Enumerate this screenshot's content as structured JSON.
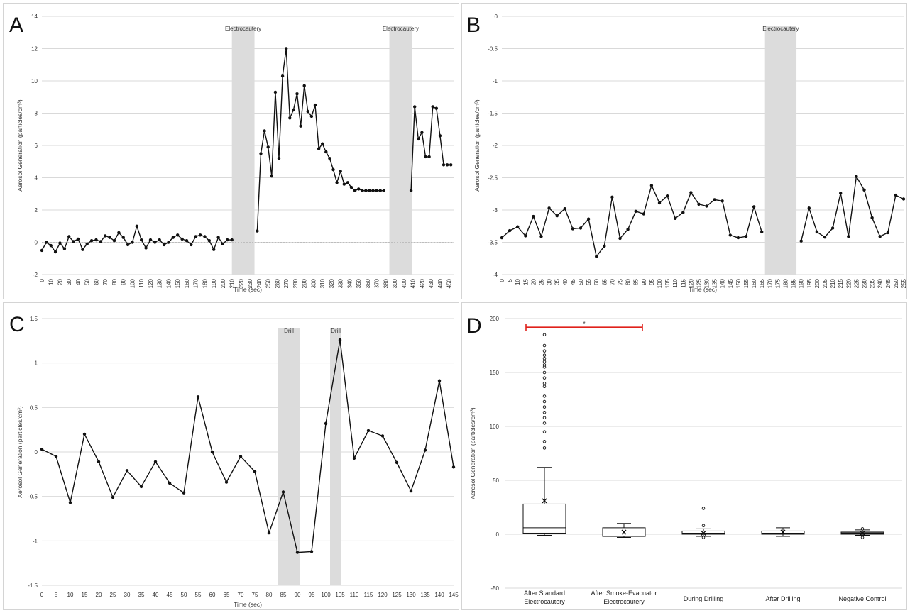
{
  "colors": {
    "line": "#111111",
    "band": "#dcdcdc",
    "grid": "#d9d9d9",
    "significance": "#e0211b",
    "box_fill_negative": "#7a7a7a"
  },
  "chart_data": [
    {
      "panel_label": "A",
      "type": "line",
      "ylabel": "Aerosol Generation (particles/cm³)",
      "xlabel": "Time (sec)",
      "ylim": [
        -2,
        14
      ],
      "yticks": [
        "-2",
        "0",
        "2",
        "4",
        "6",
        "8",
        "10",
        "12",
        "14"
      ],
      "xlim": [
        0,
        455
      ],
      "xtick_values": [
        0,
        10,
        20,
        30,
        40,
        50,
        60,
        70,
        80,
        90,
        100,
        110,
        120,
        130,
        140,
        150,
        160,
        170,
        180,
        190,
        200,
        210,
        220,
        230,
        240,
        250,
        260,
        270,
        280,
        290,
        300,
        310,
        320,
        330,
        340,
        350,
        360,
        370,
        380,
        390,
        400,
        410,
        420,
        430,
        440,
        450
      ],
      "xticks": [
        "0",
        "10",
        "20",
        "30",
        "40",
        "50",
        "60",
        "70",
        "80",
        "90",
        "100",
        "110",
        "120",
        "130",
        "140",
        "150",
        "160",
        "170",
        "180",
        "190",
        "200",
        "210",
        "220",
        "230",
        "240",
        "250",
        "260",
        "270",
        "280",
        "290",
        "300",
        "310",
        "320",
        "330",
        "340",
        "350",
        "360",
        "370",
        "380",
        "390",
        "400",
        "410",
        "420",
        "430",
        "440",
        "450"
      ],
      "zero_line": true,
      "grid": true,
      "bands": [
        {
          "label": "Electrocautery",
          "x_start": 210,
          "x_end": 235
        },
        {
          "label": "Electrocautery",
          "x_start": 384,
          "x_end": 409
        }
      ],
      "segments": [
        {
          "x": [
            0,
            5,
            10,
            15,
            20,
            25,
            30,
            35,
            40,
            45,
            50,
            55,
            60,
            65,
            70,
            75,
            80,
            85,
            90,
            95,
            100,
            105,
            110,
            115,
            120,
            125,
            130,
            135,
            140,
            145,
            150,
            155,
            160,
            165,
            170,
            175,
            180,
            185,
            190,
            195,
            200,
            205,
            210
          ],
          "y": [
            -0.5,
            0.0,
            -0.2,
            -0.6,
            -0.05,
            -0.4,
            0.35,
            0.05,
            0.2,
            -0.45,
            -0.1,
            0.1,
            0.15,
            0.05,
            0.4,
            0.3,
            0.1,
            0.6,
            0.3,
            -0.15,
            0.0,
            1.0,
            0.15,
            -0.35,
            0.15,
            0.0,
            0.15,
            -0.15,
            0.0,
            0.3,
            0.45,
            0.2,
            0.1,
            -0.15,
            0.35,
            0.45,
            0.35,
            0.1,
            -0.45,
            0.3,
            -0.1,
            0.15,
            0.15
          ]
        },
        {
          "x": [
            238,
            242,
            246,
            250,
            254,
            258,
            262,
            266,
            270,
            274,
            278,
            282,
            286,
            290,
            294,
            298,
            302,
            306,
            310,
            314,
            318,
            322,
            326,
            330,
            334,
            338,
            342,
            346,
            350,
            354,
            358,
            362,
            366,
            370,
            374,
            378
          ],
          "y": [
            0.7,
            5.5,
            6.9,
            5.9,
            4.1,
            9.3,
            5.2,
            10.3,
            12.0,
            7.7,
            8.2,
            9.2,
            7.2,
            9.7,
            8.1,
            7.8,
            8.5,
            5.8,
            6.1,
            5.6,
            5.2,
            4.5,
            3.7,
            4.4,
            3.6,
            3.7,
            3.4,
            3.2,
            3.3,
            3.2,
            3.2,
            3.2,
            3.2,
            3.2,
            3.2,
            3.2
          ]
        },
        {
          "x": [
            408,
            412,
            416,
            420,
            424,
            428,
            432,
            436,
            440,
            444,
            448,
            452
          ],
          "y": [
            3.2,
            8.4,
            6.4,
            6.8,
            5.3,
            5.3,
            8.4,
            8.3,
            6.6,
            4.8,
            4.8,
            4.8
          ]
        }
      ]
    },
    {
      "panel_label": "B",
      "type": "line",
      "ylabel": "Aerosol Generation (particles/cm³)",
      "xlabel": "Time (sec)",
      "ylim": [
        -4,
        0
      ],
      "yticks": [
        "-4",
        "-3.5",
        "-3",
        "-2.5",
        "-2",
        "-1.5",
        "-1",
        "-0.5",
        "0"
      ],
      "xlim": [
        0,
        255
      ],
      "xtick_values": [
        0,
        5,
        10,
        15,
        20,
        25,
        30,
        35,
        40,
        45,
        50,
        55,
        60,
        65,
        70,
        75,
        80,
        85,
        90,
        95,
        100,
        105,
        110,
        115,
        120,
        125,
        130,
        135,
        140,
        145,
        150,
        155,
        160,
        165,
        170,
        175,
        180,
        185,
        190,
        195,
        200,
        205,
        210,
        215,
        220,
        225,
        230,
        235,
        240,
        245,
        250,
        255
      ],
      "xticks": [
        "0",
        "5",
        "10",
        "15",
        "20",
        "25",
        "30",
        "35",
        "40",
        "45",
        "50",
        "55",
        "60",
        "65",
        "70",
        "75",
        "80",
        "85",
        "90",
        "95",
        "100",
        "105",
        "110",
        "115",
        "120",
        "125",
        "130",
        "135",
        "140",
        "145",
        "150",
        "155",
        "160",
        "165",
        "170",
        "175",
        "180",
        "185",
        "190",
        "195",
        "200",
        "205",
        "210",
        "215",
        "220",
        "225",
        "230",
        "235",
        "240",
        "245",
        "250",
        "255"
      ],
      "zero_line": false,
      "grid": true,
      "bands": [
        {
          "label": "Electrocautery",
          "x_start": 167,
          "x_end": 187
        }
      ],
      "segments": [
        {
          "x": [
            0,
            5,
            10,
            15,
            20,
            25,
            30,
            35,
            40,
            45,
            50,
            55,
            60,
            65,
            70,
            75,
            80,
            85,
            90,
            95,
            100,
            105,
            110,
            115,
            120,
            125,
            130,
            135,
            140,
            145,
            150,
            155,
            160,
            165
          ],
          "y": [
            -3.43,
            -3.32,
            -3.26,
            -3.4,
            -3.1,
            -3.41,
            -2.97,
            -3.09,
            -2.98,
            -3.29,
            -3.28,
            -3.14,
            -3.72,
            -3.56,
            -2.8,
            -3.44,
            -3.3,
            -3.02,
            -3.06,
            -2.62,
            -2.89,
            -2.78,
            -3.13,
            -3.04,
            -2.73,
            -2.91,
            -2.94,
            -2.84,
            -2.86,
            -3.39,
            -3.43,
            -3.41,
            -2.95,
            -3.34
          ]
        },
        {
          "x": [
            190,
            195,
            200,
            205,
            210,
            215,
            220,
            225,
            230,
            235,
            240,
            245,
            250,
            255
          ],
          "y": [
            -3.48,
            -2.97,
            -3.34,
            -3.42,
            -3.28,
            -2.74,
            -3.41,
            -2.48,
            -2.69,
            -3.12,
            -3.41,
            -3.35,
            -2.77,
            -2.83
          ]
        }
      ]
    },
    {
      "panel_label": "C",
      "type": "line",
      "ylabel": "Aerosol Generation (particles/cm³)",
      "xlabel": "Time (sec)",
      "ylim": [
        -1.5,
        1.5
      ],
      "yticks": [
        "-1.5",
        "-1",
        "-0.5",
        "0",
        "0.5",
        "1",
        "1.5"
      ],
      "xlim": [
        0,
        145
      ],
      "xtick_values": [
        0,
        5,
        10,
        15,
        20,
        25,
        30,
        35,
        40,
        45,
        50,
        55,
        60,
        65,
        70,
        75,
        80,
        85,
        90,
        95,
        100,
        105,
        110,
        115,
        120,
        125,
        130,
        135,
        140,
        145
      ],
      "xticks": [
        "0",
        "5",
        "10",
        "15",
        "20",
        "25",
        "30",
        "35",
        "40",
        "45",
        "50",
        "55",
        "60",
        "65",
        "70",
        "75",
        "80",
        "85",
        "90",
        "95",
        "100",
        "105",
        "110",
        "115",
        "120",
        "125",
        "130",
        "135",
        "140",
        "145"
      ],
      "zero_line": false,
      "grid": true,
      "bands": [
        {
          "label": "Drill",
          "x_start": 83,
          "x_end": 91
        },
        {
          "label": "Drill",
          "x_start": 101.5,
          "x_end": 105.5
        }
      ],
      "segments": [
        {
          "x": [
            0,
            5,
            10,
            15,
            20,
            25,
            30,
            35,
            40,
            45,
            50,
            55,
            60,
            65,
            70,
            75,
            80,
            85,
            90,
            95,
            100,
            105,
            110,
            115,
            120,
            125,
            130,
            135,
            140,
            145
          ],
          "y": [
            0.03,
            -0.05,
            -0.57,
            0.2,
            -0.11,
            -0.51,
            -0.21,
            -0.39,
            -0.11,
            -0.35,
            -0.46,
            0.62,
            0.0,
            -0.34,
            -0.05,
            -0.22,
            -0.91,
            -0.45,
            -1.13,
            -1.12,
            0.32,
            1.26,
            -0.07,
            0.24,
            0.18,
            -0.12,
            -0.44,
            0.02,
            0.8,
            -0.17
          ]
        }
      ]
    },
    {
      "panel_label": "D",
      "type": "box",
      "ylabel": "Aerosol Generation (particles/cm³)",
      "ylim": [
        -50,
        200
      ],
      "yticks": [
        "-50",
        "0",
        "50",
        "100",
        "150",
        "200"
      ],
      "grid": true,
      "significance": {
        "from": 0,
        "to": 1,
        "y": 192,
        "mark": "*"
      },
      "categories": [
        {
          "label_lines": [
            "After Standard",
            "Electrocautery"
          ],
          "whisker_low": -1,
          "q1": 1,
          "median": 6,
          "q3": 28,
          "whisker_high": 62,
          "mean": 31,
          "outliers": [
            80,
            86,
            95,
            103,
            108,
            113,
            118,
            123,
            128,
            137,
            140,
            145,
            150,
            155,
            157,
            160,
            163,
            166,
            170,
            175,
            185
          ],
          "fill": "white"
        },
        {
          "label_lines": [
            "After Smoke-Evacuator",
            "Electrocautery"
          ],
          "whisker_low": -3,
          "q1": -2,
          "median": 3,
          "q3": 6,
          "whisker_high": 10,
          "mean": 2,
          "outliers": [],
          "fill": "white"
        },
        {
          "label_lines": [
            "During Drilling"
          ],
          "whisker_low": -2,
          "q1": 0,
          "median": 1,
          "q3": 3,
          "whisker_high": 5,
          "mean": 1,
          "outliers": [
            24,
            8,
            -3
          ],
          "fill": "white"
        },
        {
          "label_lines": [
            "After Drilling"
          ],
          "whisker_low": -2,
          "q1": 0,
          "median": 1,
          "q3": 3,
          "whisker_high": 6,
          "mean": 2,
          "outliers": [],
          "fill": "white"
        },
        {
          "label_lines": [
            "Negative Control"
          ],
          "whisker_low": -1,
          "q1": 0,
          "median": 1,
          "q3": 2,
          "whisker_high": 4,
          "mean": 1,
          "outliers": [
            5,
            -3
          ],
          "fill": "gray"
        }
      ]
    }
  ]
}
